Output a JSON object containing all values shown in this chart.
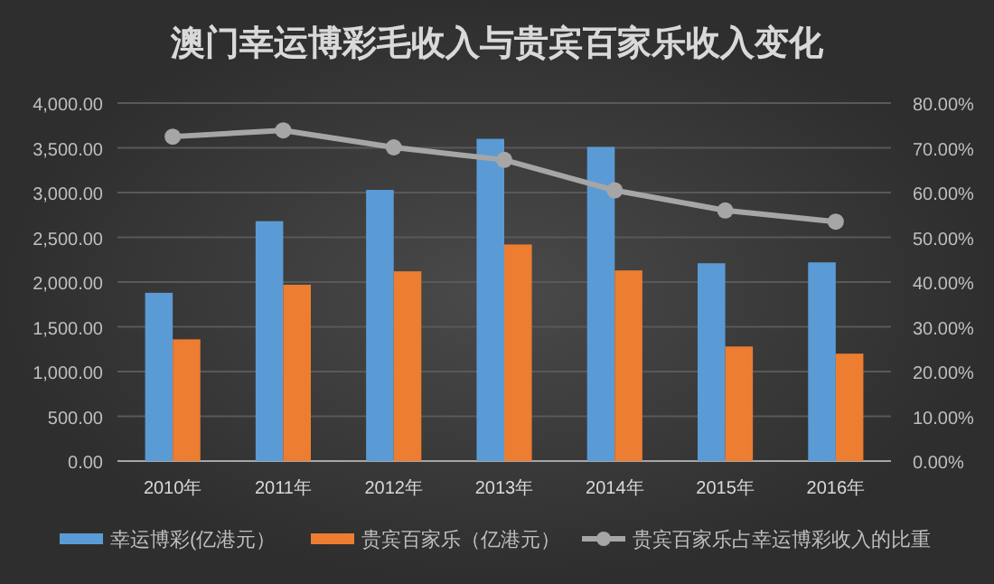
{
  "chart_data": {
    "type": "bar",
    "title": "澳门幸运博彩毛收入与贵宾百家乐收入变化",
    "categories": [
      "2010年",
      "2011年",
      "2012年",
      "2013年",
      "2014年",
      "2015年",
      "2016年"
    ],
    "series": [
      {
        "name": "幸运博彩(亿港元）",
        "color": "#5b9bd5",
        "values": [
          1880,
          2680,
          3030,
          3600,
          3510,
          2210,
          2220
        ]
      },
      {
        "name": "贵宾百家乐（亿港元）",
        "color": "#ed7d31",
        "values": [
          1360,
          1970,
          2120,
          2420,
          2130,
          1280,
          1200
        ]
      },
      {
        "name": "贵宾百家乐占幸运博彩收入的比重",
        "type": "line",
        "axis": "y2",
        "color": "#a6a6a6",
        "marker": "circle",
        "values": [
          72.5,
          73.9,
          70.1,
          67.3,
          60.5,
          56.0,
          53.5
        ]
      }
    ],
    "ylim": [
      0,
      4000
    ],
    "yticks": [
      {
        "value": 0,
        "label": "0.00"
      },
      {
        "value": 500,
        "label": "500.00"
      },
      {
        "value": 1000,
        "label": "1,000.00"
      },
      {
        "value": 1500,
        "label": "1,500.00"
      },
      {
        "value": 2000,
        "label": "2,000.00"
      },
      {
        "value": 2500,
        "label": "2,500.00"
      },
      {
        "value": 3000,
        "label": "3,000.00"
      },
      {
        "value": 3500,
        "label": "3,500.00"
      },
      {
        "value": 4000,
        "label": "4,000.00"
      }
    ],
    "y2lim": [
      0,
      80
    ],
    "y2ticks": [
      {
        "value": 0,
        "label": "0.00%"
      },
      {
        "value": 10,
        "label": "10.00%"
      },
      {
        "value": 20,
        "label": "20.00%"
      },
      {
        "value": 30,
        "label": "30.00%"
      },
      {
        "value": 40,
        "label": "40.00%"
      },
      {
        "value": 50,
        "label": "50.00%"
      },
      {
        "value": 60,
        "label": "60.00%"
      },
      {
        "value": 70,
        "label": "70.00%"
      },
      {
        "value": 80,
        "label": "80.00%"
      }
    ],
    "grid": "y",
    "legend": "bottom"
  }
}
